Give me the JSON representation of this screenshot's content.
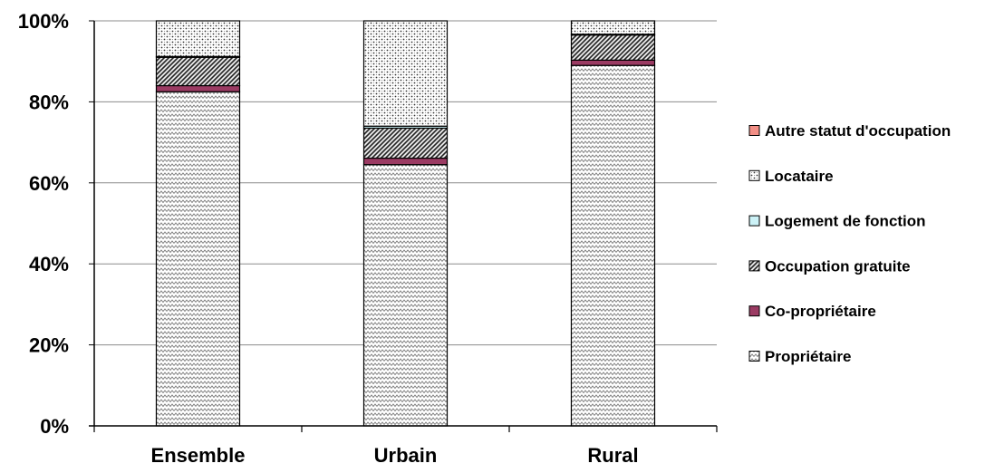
{
  "chart_data": {
    "type": "bar",
    "stacked": true,
    "percent": true,
    "categories": [
      "Ensemble",
      "Urbain",
      "Rural"
    ],
    "series": [
      {
        "name": "Propriétaire",
        "values": [
          82.5,
          64.5,
          89.0
        ],
        "pattern": "zigzag",
        "color": "#bdbdbd"
      },
      {
        "name": "Co-propriétaire",
        "values": [
          1.5,
          1.6,
          1.3
        ],
        "pattern": "solid",
        "color": "#9b3b63"
      },
      {
        "name": "Occupation gratuite",
        "values": [
          7.0,
          7.4,
          6.2
        ],
        "pattern": "diagonal",
        "color": "#3f3f3f"
      },
      {
        "name": "Logement de fonction",
        "values": [
          0.2,
          0.5,
          0.2
        ],
        "pattern": "solid",
        "color": "#ccf2f7"
      },
      {
        "name": "Locataire",
        "values": [
          8.8,
          26.0,
          3.3
        ],
        "pattern": "dots",
        "color": "#8a8a8a"
      },
      {
        "name": "Autre statut d'occupation",
        "values": [
          0.0,
          0.0,
          0.0
        ],
        "pattern": "solid",
        "color": "#f28f86"
      }
    ],
    "ylim": [
      0,
      100
    ],
    "y_ticks": [
      "0%",
      "20%",
      "40%",
      "60%",
      "80%",
      "100%"
    ],
    "grid": true,
    "legend_position": "right"
  }
}
